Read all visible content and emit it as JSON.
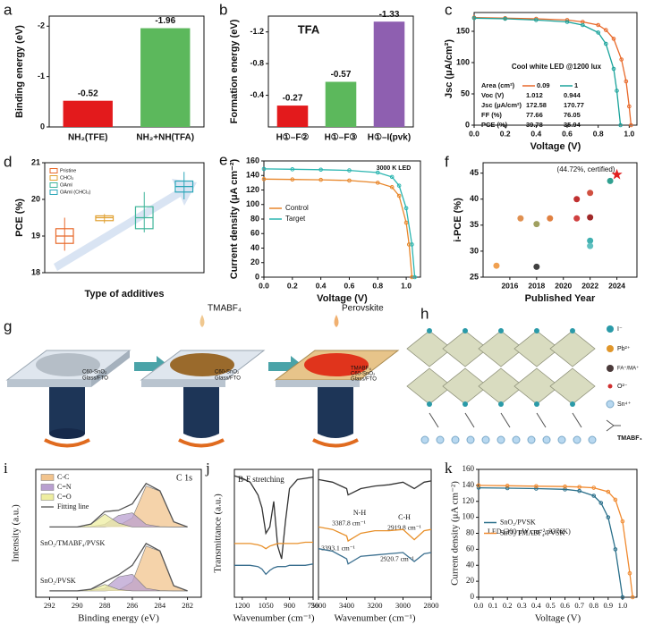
{
  "chart_data": [
    {
      "panel": "a",
      "type": "bar",
      "categories": [
        "NH₂(TFE)",
        "NH₂+NH(TFA)"
      ],
      "values": [
        -0.52,
        -1.96
      ],
      "colors": [
        "#e31a1c",
        "#5cb85c"
      ],
      "ylabel": "Binding energy (eV)",
      "ylim": [
        0,
        -2.2
      ],
      "yticks": [
        0,
        -1,
        -2
      ]
    },
    {
      "panel": "b",
      "type": "bar",
      "title": "TFA",
      "categories": [
        "H①–F②",
        "H①–F③",
        "H①–I(pvk)"
      ],
      "values": [
        -0.27,
        -0.57,
        -1.33
      ],
      "colors": [
        "#e31a1c",
        "#5cb85c",
        "#8e5fb0"
      ],
      "ylabel": "Formation energy (eV)",
      "ylim": [
        0,
        -1.4
      ],
      "yticks": [
        -0.4,
        -0.8,
        -1.2
      ]
    },
    {
      "panel": "c",
      "type": "line",
      "xlabel": "Voltage (V)",
      "ylabel": "Jsc (μA/cm²)",
      "xlim": [
        0,
        1.05
      ],
      "ylim": [
        0,
        180
      ],
      "xticks": [
        {
          "value": 0,
          "label": "0.0"
        },
        {
          "value": 0.2,
          "label": "0.2"
        },
        {
          "value": 0.4,
          "label": "0.4"
        },
        {
          "value": 0.6,
          "label": "0.6"
        },
        {
          "value": 0.8,
          "label": "0.8"
        },
        {
          "value": 1,
          "label": "1.0"
        }
      ],
      "yticks": [
        0,
        50,
        100,
        150
      ],
      "annotations": [
        "Cool white LED @1200 lux"
      ],
      "markers": true,
      "series": [
        {
          "name": "0.09",
          "color": "#e8692a",
          "x": [
            0,
            0.2,
            0.4,
            0.6,
            0.7,
            0.8,
            0.85,
            0.9,
            0.95,
            0.98,
            1.0,
            1.012
          ],
          "values": [
            172,
            171,
            170,
            168,
            165,
            160,
            152,
            138,
            105,
            70,
            30,
            0
          ]
        },
        {
          "name": "1",
          "color": "#1aa39b",
          "x": [
            0,
            0.2,
            0.4,
            0.6,
            0.7,
            0.8,
            0.85,
            0.9,
            0.92,
            0.944
          ],
          "values": [
            171,
            170,
            168,
            165,
            160,
            148,
            130,
            90,
            55,
            0
          ]
        }
      ],
      "table": {
        "header": "Area (cm²)",
        "rows": [
          {
            "label": "Voc (V)",
            "values": [
              "1.012",
              "0.944"
            ]
          },
          {
            "label": "Jsc (μA/cm²)",
            "values": [
              "172.58",
              "170.77"
            ]
          },
          {
            "label": "FF (%)",
            "values": [
              "77.66",
              "76.05"
            ]
          },
          {
            "label": "PCE (%)",
            "values": [
              "39.78",
              "35.94"
            ]
          }
        ]
      }
    },
    {
      "panel": "d",
      "type": "box",
      "categories": [
        "Pristine",
        "CHCl₃",
        "OAml",
        "OAml (CHCl₃)"
      ],
      "boxes": [
        {
          "min": 18.6,
          "q1": 18.8,
          "median": 19.0,
          "q3": 19.2,
          "max": 19.5
        },
        {
          "min": 19.35,
          "q1": 19.42,
          "median": 19.5,
          "q3": 19.55,
          "max": 19.6
        },
        {
          "min": 19.1,
          "q1": 19.2,
          "median": 19.5,
          "q3": 19.8,
          "max": 20.2
        },
        {
          "min": 20.0,
          "q1": 20.2,
          "median": 20.35,
          "q3": 20.5,
          "max": 20.75
        }
      ],
      "colors": [
        "#e8692a",
        "#e0a030",
        "#3fb59a",
        "#2aa6b8"
      ],
      "ylim": [
        18,
        21
      ],
      "yticks": [
        18,
        19,
        20,
        21
      ],
      "xlabel": "Type of additives",
      "ylabel": "PCE (%)",
      "legend": "upper left"
    },
    {
      "panel": "e",
      "type": "line",
      "xlabel": "Voltage (V)",
      "ylabel": "Current density (μA cm⁻²)",
      "xlim": [
        0,
        1.1
      ],
      "ylim": [
        0,
        160
      ],
      "xticks": [
        {
          "value": 0,
          "label": "0.0"
        },
        {
          "value": 0.2,
          "label": "0.2"
        },
        {
          "value": 0.4,
          "label": "0.4"
        },
        {
          "value": 0.6,
          "label": "0.6"
        },
        {
          "value": 0.8,
          "label": "0.8"
        },
        {
          "value": 1,
          "label": "1.0"
        }
      ],
      "yticks": [
        0,
        20,
        40,
        60,
        80,
        100,
        120,
        140,
        160
      ],
      "annotations": [
        "3000 K LED"
      ],
      "legend": "center left",
      "markers": true,
      "series": [
        {
          "name": "Control",
          "color": "#e8862a",
          "x": [
            0,
            0.2,
            0.4,
            0.6,
            0.8,
            0.9,
            0.95,
            1.0,
            1.02,
            1.04
          ],
          "values": [
            135,
            134.5,
            134,
            133,
            130,
            124,
            112,
            75,
            45,
            0
          ]
        },
        {
          "name": "Target",
          "color": "#2ab5b0",
          "x": [
            0,
            0.2,
            0.4,
            0.6,
            0.8,
            0.9,
            0.95,
            1.0,
            1.04,
            1.06
          ],
          "values": [
            149,
            148.5,
            148,
            147,
            144,
            138,
            126,
            95,
            45,
            0
          ]
        }
      ]
    },
    {
      "panel": "f",
      "type": "scatter",
      "x": [
        2015,
        2016.8,
        2018,
        2018,
        2019,
        2021,
        2021,
        2022,
        2022,
        2022,
        2022,
        2023.5,
        2024
      ],
      "values": [
        27.2,
        36.3,
        35.2,
        27,
        36.3,
        40,
        36.3,
        41.2,
        36.5,
        32,
        31,
        43.5,
        44.72
      ],
      "colors": [
        "#f0a050",
        "#e09050",
        "#a0a060",
        "#404040",
        "#e08040",
        "#c03030",
        "#d04040",
        "#d05040",
        "#a02828",
        "#40b0b0",
        "#60c0c0",
        "#30a090",
        "#e02020"
      ],
      "markers": [
        "circle",
        "circle",
        "circle",
        "circle",
        "circle",
        "circle",
        "circle",
        "circle",
        "circle",
        "circle",
        "circle",
        "circle",
        "star"
      ],
      "xlim": [
        2014,
        2025.5
      ],
      "xticks": [
        2016,
        2018,
        2020,
        2022,
        2024
      ],
      "ylim": [
        25,
        47
      ],
      "yticks": [
        25,
        30,
        35,
        40,
        45
      ],
      "xlabel": "Published Year",
      "ylabel": "i-PCE (%)",
      "annotations": [
        "(44.72%, certified)"
      ]
    },
    {
      "panel": "i",
      "type": "spectra",
      "x": [
        292,
        291,
        290,
        289,
        288,
        287,
        286,
        285,
        284,
        283,
        282
      ],
      "xlim": [
        293,
        281
      ],
      "ylim": [
        0,
        100
      ],
      "xticks": [
        292,
        290,
        288,
        286,
        284,
        282
      ],
      "xlabel": "Binding energy (eV)",
      "ylabel": "Intensity (a.u.)",
      "annotations": [
        "C 1s"
      ],
      "legend": "upper left",
      "legend_items": [
        {
          "name": "C-C",
          "color": "#f2c48e"
        },
        {
          "name": "C=N",
          "color": "#b9a0d0"
        },
        {
          "name": "C=O",
          "color": "#eeeea0"
        },
        {
          "name": "Fitting line",
          "color": "#555555"
        }
      ],
      "spectra": [
        {
          "label": "SnO₂/TMABF₄/PVSK",
          "series": [
            {
              "values": [
                55,
                55,
                55,
                55,
                55,
                56,
                62,
                87,
                83,
                59,
                55
              ]
            },
            {
              "values": [
                55,
                55,
                55,
                55.3,
                57,
                64,
                66,
                57,
                55.2,
                55,
                55
              ]
            },
            {
              "values": [
                55,
                55,
                55,
                57,
                65,
                58,
                55,
                55,
                55,
                55,
                55
              ]
            },
            {
              "values": [
                55,
                55,
                55,
                57.3,
                67,
                68,
                73,
                89,
                83.2,
                59,
                55
              ]
            }
          ]
        },
        {
          "label": "SnO₂/PVSK",
          "series": [
            {
              "values": [
                5,
                5,
                5,
                5,
                5,
                5.5,
                12,
                40,
                36,
                9,
                5
              ]
            },
            {
              "values": [
                5,
                5,
                5,
                5.3,
                7,
                16,
                18,
                7,
                5.2,
                5,
                5
              ]
            },
            {
              "values": [
                5,
                5,
                5,
                6,
                10,
                6,
                5,
                5,
                5,
                5,
                5
              ]
            },
            {
              "values": [
                5,
                5,
                5,
                6.3,
                12,
                17.5,
                25,
                42,
                36.2,
                9,
                5
              ]
            }
          ]
        }
      ]
    },
    {
      "panel": "j",
      "type": "line",
      "x": [
        1250,
        1200,
        1150,
        1100,
        1075,
        1050,
        1025,
        1000,
        975,
        950,
        925,
        900,
        850,
        800,
        750
      ],
      "xlim": [
        1250,
        750
      ],
      "xticks": [
        1200,
        1050,
        900,
        750
      ],
      "ylim": [
        0,
        100
      ],
      "xlabel": "Wavenumber (cm⁻¹)",
      "ylabel": "Transmittance (a.u.)",
      "annotations": [
        "B-F stretching"
      ],
      "series": [
        {
          "color": "#333333",
          "values": [
            95,
            93,
            90,
            80,
            70,
            50,
            55,
            75,
            40,
            30,
            60,
            85,
            92,
            93,
            94
          ]
        },
        {
          "color": "#e8902a",
          "values": [
            42,
            42,
            42,
            41,
            40,
            38,
            40,
            41,
            42,
            42,
            42,
            42,
            42,
            43,
            43
          ]
        },
        {
          "color": "#3a6f8f",
          "values": [
            25,
            25,
            25,
            24,
            22,
            18,
            21,
            23,
            24,
            24,
            24,
            25,
            25,
            25,
            26
          ]
        }
      ]
    },
    {
      "type": "line",
      "x": [
        3600,
        3500,
        3400,
        3390,
        3300,
        3200,
        3100,
        3000,
        2920,
        2850,
        2800
      ],
      "xlim": [
        3600,
        2800
      ],
      "xticks": [
        3600,
        3400,
        3200,
        3000,
        2800
      ],
      "ylim": [
        0,
        100
      ],
      "xlabel": "Wavenumber (cm⁻¹)",
      "annotations": [
        "N-H",
        "3387.8 cm⁻¹",
        "C-H",
        "2919.8 cm⁻¹",
        "3393.1 cm⁻¹",
        "2920.7 cm⁻¹"
      ],
      "series": [
        {
          "color": "#333333",
          "values": [
            92,
            90,
            85,
            80,
            85,
            87,
            88,
            90,
            85,
            90,
            91
          ]
        },
        {
          "color": "#e8902a",
          "values": [
            55,
            53,
            48,
            44,
            50,
            52,
            52,
            53,
            45,
            52,
            53
          ]
        },
        {
          "color": "#3a6f8f",
          "values": [
            38,
            36,
            30,
            26,
            32,
            33,
            34,
            35,
            28,
            34,
            35
          ]
        }
      ]
    },
    {
      "panel": "k",
      "type": "line",
      "xlabel": "Voltage (V)",
      "ylabel": "Current density (μA cm⁻²)",
      "xlim": [
        0,
        1.1
      ],
      "ylim": [
        0,
        160
      ],
      "xticks": [
        {
          "value": 0,
          "label": "0.0"
        },
        {
          "value": 0.1,
          "label": "0.1"
        },
        {
          "value": 0.2,
          "label": "0.2"
        },
        {
          "value": 0.3,
          "label": "0.3"
        },
        {
          "value": 0.4,
          "label": "0.4"
        },
        {
          "value": 0.5,
          "label": "0.5"
        },
        {
          "value": 0.6,
          "label": "0.6"
        },
        {
          "value": 0.7,
          "label": "0.7"
        },
        {
          "value": 0.8,
          "label": "0.8"
        },
        {
          "value": 0.9,
          "label": "0.9"
        },
        {
          "value": 1,
          "label": "1.0"
        }
      ],
      "yticks": [
        0,
        20,
        40,
        60,
        80,
        100,
        120,
        140,
        160
      ],
      "annotations": [
        "LED (300 μW cm⁻², 3376K)"
      ],
      "legend": "center left",
      "markers": true,
      "series": [
        {
          "name": "SnO₂/PVSK",
          "color": "#2a6f8a",
          "x": [
            0,
            0.2,
            0.4,
            0.6,
            0.7,
            0.8,
            0.85,
            0.9,
            0.95,
            1.0
          ],
          "values": [
            137,
            136.5,
            136,
            135,
            133,
            127,
            118,
            100,
            60,
            0
          ]
        },
        {
          "name": "SnO₂/TMABF₄/PVSK",
          "color": "#f08a30",
          "x": [
            0,
            0.2,
            0.4,
            0.6,
            0.7,
            0.8,
            0.9,
            0.95,
            1.0,
            1.05,
            1.07
          ],
          "values": [
            140,
            139.5,
            139,
            138.5,
            138,
            137,
            132,
            122,
            95,
            30,
            0
          ]
        }
      ]
    }
  ],
  "panel_g": {
    "panel": "g",
    "drops": [
      "TMABF₄",
      "Perovskite"
    ],
    "stage_layers": [
      [
        "C60-SnO₂",
        "Glass/FTO"
      ],
      [
        "C60-SnO₂",
        "Glass/FTO"
      ],
      [
        "TMABF₄",
        "C60-SnO₂",
        "Glass/FTO"
      ]
    ]
  },
  "panel_h": {
    "panel": "h",
    "legend": [
      "I⁻",
      "Pb²⁺",
      "FA⁺/MA⁺",
      "O²⁻",
      "Sn⁴⁺",
      "TMABF₄"
    ]
  }
}
